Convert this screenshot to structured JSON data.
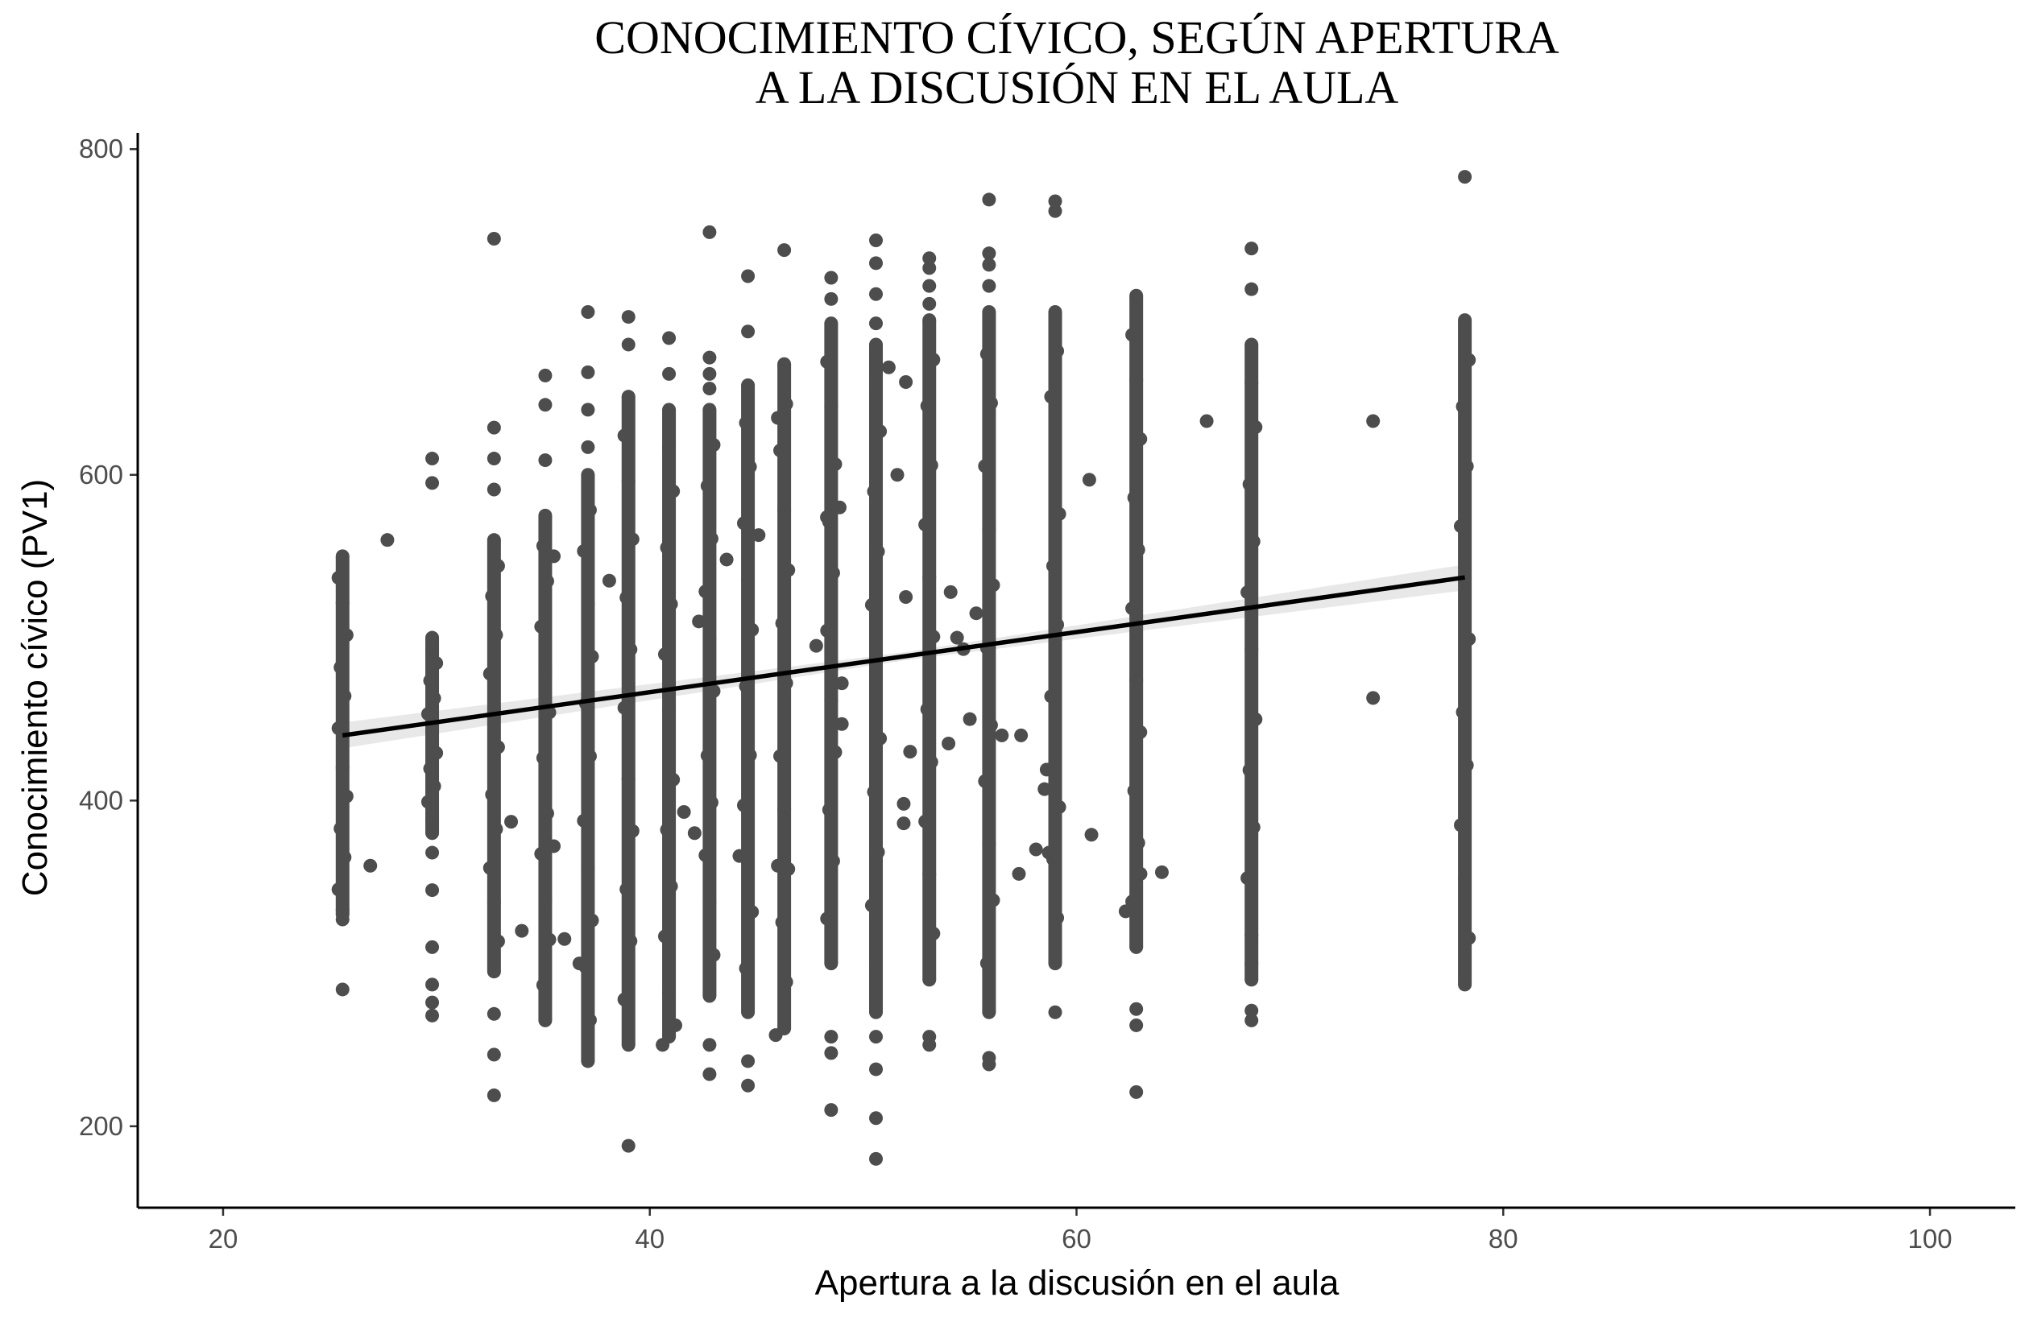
{
  "chart_data": {
    "type": "scatter",
    "title_lines": [
      "CONOCIMIENTO CÍVICO, SEGÚN APERTURA",
      "A LA DISCUSIÓN EN EL AULA"
    ],
    "xlabel": "Apertura a la discusión en el aula",
    "ylabel": "Conocimiento cívico (PV1)",
    "xlim": [
      16,
      104
    ],
    "ylim": [
      150,
      810
    ],
    "x_ticks": [
      20,
      40,
      60,
      80,
      100
    ],
    "y_ticks": [
      200,
      400,
      600,
      800
    ],
    "grid": false,
    "legend": "none",
    "point_color": "#4d4d4d",
    "line_color": "#000000",
    "band_color": "#d9d9d9",
    "columns": [
      {
        "x": 25.6,
        "lo": 330,
        "hi": 550,
        "extra": [
          284,
          327,
          333
        ]
      },
      {
        "x": 29.8,
        "lo": 380,
        "hi": 500,
        "extra": [
          268,
          276,
          287,
          310,
          345,
          368,
          595,
          610
        ]
      },
      {
        "x": 32.7,
        "lo": 295,
        "hi": 560,
        "extra": [
          219,
          244,
          269,
          591,
          610,
          629,
          745
        ]
      },
      {
        "x": 35.1,
        "lo": 265,
        "hi": 575,
        "extra": [
          609,
          643,
          661
        ]
      },
      {
        "x": 37.1,
        "lo": 240,
        "hi": 600,
        "extra": [
          617,
          640,
          663,
          700
        ]
      },
      {
        "x": 39.0,
        "lo": 250,
        "hi": 648,
        "extra": [
          188,
          680,
          697
        ]
      },
      {
        "x": 40.9,
        "lo": 255,
        "hi": 640,
        "extra": [
          662,
          684
        ]
      },
      {
        "x": 42.8,
        "lo": 280,
        "hi": 640,
        "extra": [
          232,
          250,
          653,
          662,
          672,
          749
        ]
      },
      {
        "x": 44.6,
        "lo": 270,
        "hi": 655,
        "extra": [
          225,
          240,
          688,
          722
        ]
      },
      {
        "x": 46.3,
        "lo": 260,
        "hi": 668,
        "extra": [
          738
        ]
      },
      {
        "x": 48.5,
        "lo": 300,
        "hi": 693,
        "extra": [
          210,
          245,
          255,
          708,
          721
        ]
      },
      {
        "x": 50.6,
        "lo": 270,
        "hi": 680,
        "extra": [
          180,
          205,
          235,
          255,
          693,
          711,
          730,
          744
        ]
      },
      {
        "x": 53.1,
        "lo": 290,
        "hi": 695,
        "extra": [
          250,
          255,
          705,
          716,
          727,
          733
        ]
      },
      {
        "x": 55.9,
        "lo": 270,
        "hi": 700,
        "extra": [
          238,
          242,
          716,
          729,
          736,
          769
        ]
      },
      {
        "x": 59.0,
        "lo": 300,
        "hi": 700,
        "extra": [
          270,
          762,
          768
        ]
      },
      {
        "x": 62.8,
        "lo": 310,
        "hi": 710,
        "extra": [
          221,
          262,
          272
        ]
      },
      {
        "x": 68.2,
        "lo": 290,
        "hi": 680,
        "extra": [
          265,
          271,
          300,
          714,
          739
        ]
      },
      {
        "x": 78.2,
        "lo": 287,
        "hi": 695,
        "extra": [
          783
        ]
      }
    ],
    "scattered_points": [
      [
        27.7,
        560
      ],
      [
        26.9,
        360
      ],
      [
        33.5,
        387
      ],
      [
        34.0,
        320
      ],
      [
        35.5,
        550
      ],
      [
        35.5,
        372
      ],
      [
        36.0,
        315
      ],
      [
        36.7,
        300
      ],
      [
        38.1,
        535
      ],
      [
        40.6,
        250
      ],
      [
        41.2,
        262
      ],
      [
        41.6,
        393
      ],
      [
        42.1,
        380
      ],
      [
        42.3,
        510
      ],
      [
        43.6,
        548
      ],
      [
        44.2,
        366
      ],
      [
        45.1,
        563
      ],
      [
        45.9,
        256
      ],
      [
        46.0,
        635
      ],
      [
        46.0,
        360
      ],
      [
        47.8,
        495
      ],
      [
        48.3,
        574
      ],
      [
        48.9,
        580
      ],
      [
        49.0,
        472
      ],
      [
        49.0,
        447
      ],
      [
        51.2,
        666
      ],
      [
        51.6,
        600
      ],
      [
        51.9,
        386
      ],
      [
        51.9,
        398
      ],
      [
        52.0,
        657
      ],
      [
        52.0,
        525
      ],
      [
        52.2,
        430
      ],
      [
        54.0,
        435
      ],
      [
        54.1,
        528
      ],
      [
        54.4,
        500
      ],
      [
        54.7,
        493
      ],
      [
        55.0,
        450
      ],
      [
        55.3,
        515
      ],
      [
        56.5,
        440
      ],
      [
        57.3,
        355
      ],
      [
        57.4,
        440
      ],
      [
        58.1,
        370
      ],
      [
        58.5,
        407
      ],
      [
        58.6,
        419
      ],
      [
        58.7,
        368
      ],
      [
        60.6,
        597
      ],
      [
        60.7,
        379
      ],
      [
        63.0,
        355
      ],
      [
        62.3,
        332
      ],
      [
        64.0,
        356
      ],
      [
        66.1,
        633
      ],
      [
        73.9,
        633
      ],
      [
        73.9,
        463
      ]
    ],
    "trend_line": {
      "x": [
        25.6,
        78.2
      ],
      "y": [
        440,
        537
      ]
    }
  }
}
